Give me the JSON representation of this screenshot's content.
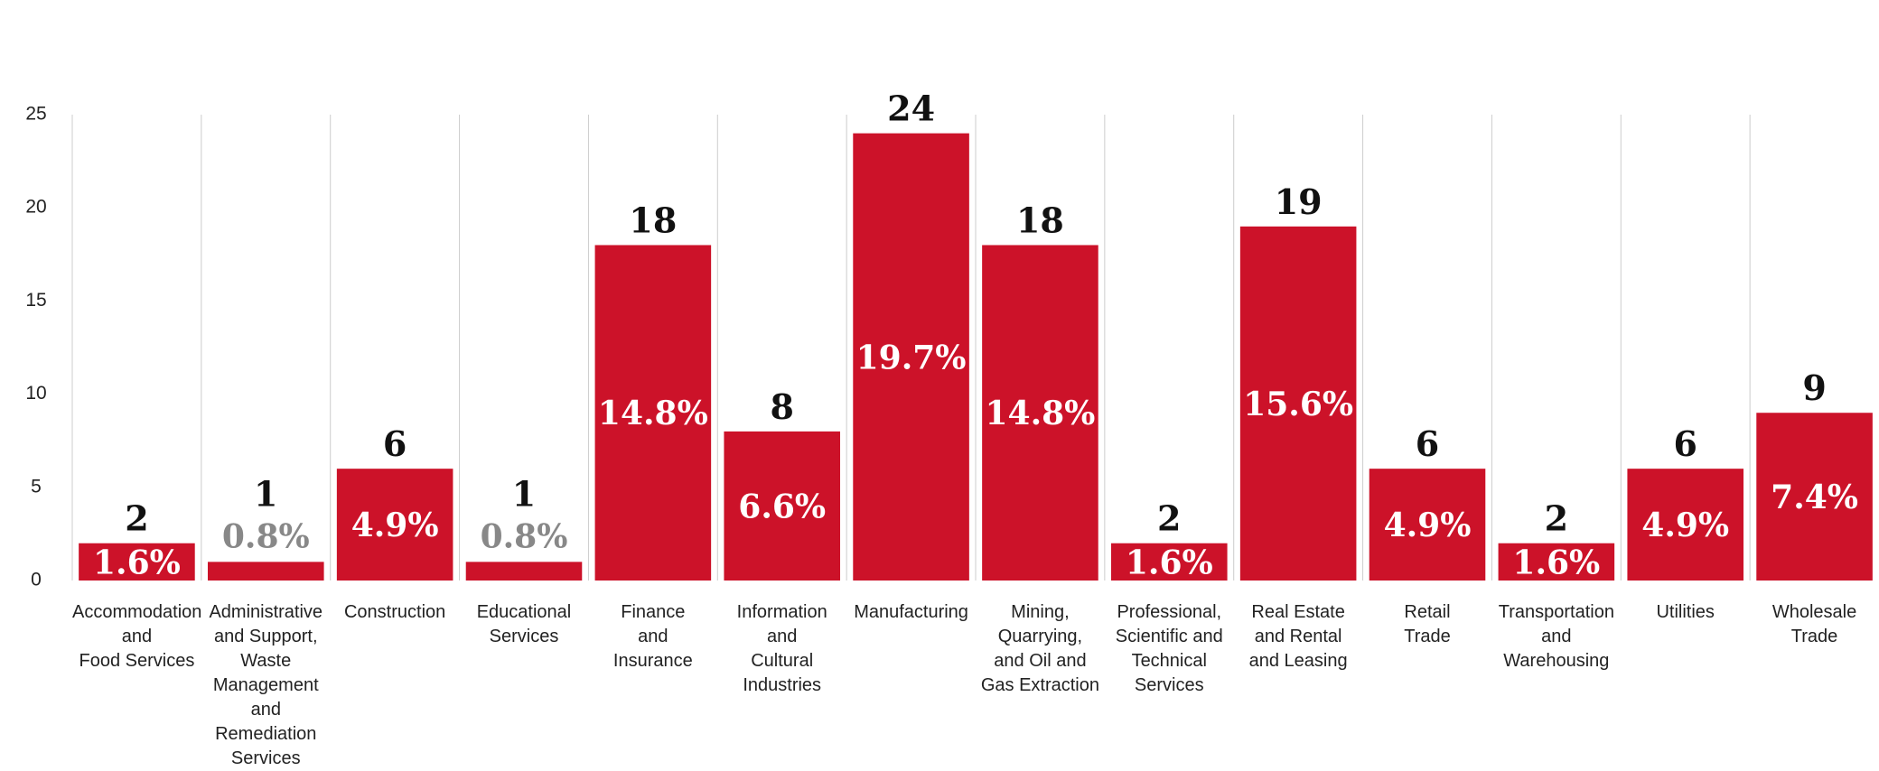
{
  "chart_data": {
    "type": "bar",
    "categories": [
      "Accommodation\nand\nFood Services",
      "Administrative\nand Support,\nWaste\nManagement\nand Remediation\nServices",
      "Construction",
      "Educational\nServices",
      "Finance\nand\nInsurance",
      "Information\nand\nCultural\nIndustries",
      "Manufacturing",
      "Mining,\nQuarrying,\nand Oil and\nGas Extraction",
      "Professional,\nScientific and\nTechnical\nServices",
      "Real Estate\nand Rental\nand Leasing",
      "Retail\nTrade",
      "Transportation\nand Warehousing",
      "Utilities",
      "Wholesale\nTrade"
    ],
    "values": [
      2,
      1,
      6,
      1,
      18,
      8,
      24,
      18,
      2,
      19,
      6,
      2,
      6,
      9
    ],
    "percent_labels": [
      "1.6%",
      "0.8%",
      "4.9%",
      "0.8%",
      "14.8%",
      "6.6%",
      "19.7%",
      "14.8%",
      "1.6%",
      "15.6%",
      "4.9%",
      "1.6%",
      "4.9%",
      "7.4%"
    ],
    "color": "#cc1229",
    "ylim": [
      0,
      25
    ],
    "yticks": [
      0,
      5,
      10,
      15,
      20,
      25
    ],
    "grid": true
  }
}
